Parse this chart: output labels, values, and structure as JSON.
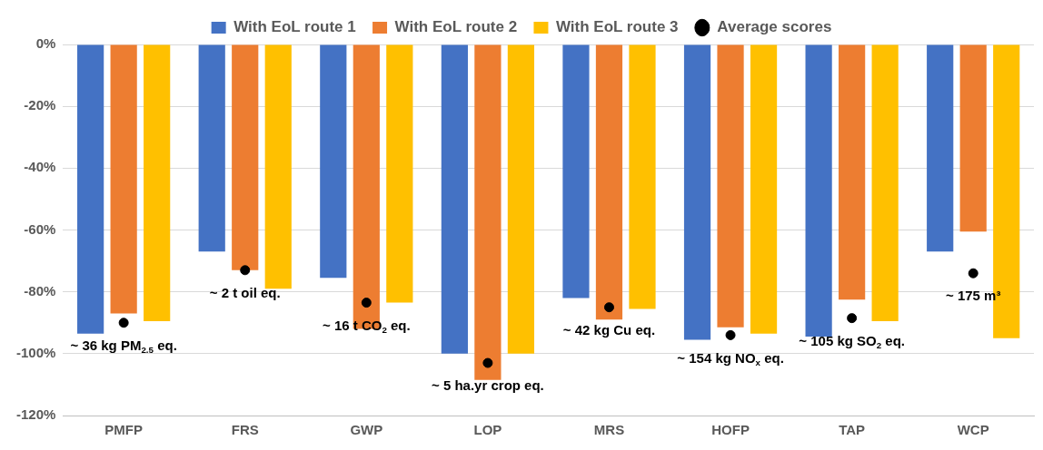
{
  "chart_data": {
    "type": "bar",
    "categories": [
      "PMFP",
      "FRS",
      "GWP",
      "LOP",
      "MRS",
      "HOFP",
      "TAP",
      "WCP"
    ],
    "series": [
      {
        "name": "With EoL route 1",
        "color": "#4472c4",
        "values": [
          -93.5,
          -67,
          -75.5,
          -100,
          -82,
          -95.5,
          -94.5,
          -67
        ]
      },
      {
        "name": "With EoL route 2",
        "color": "#ed7d31",
        "values": [
          -87,
          -73,
          -92,
          -108.5,
          -89,
          -91.5,
          -82.5,
          -60.5
        ]
      },
      {
        "name": "With EoL route 3",
        "color": "#ffc000",
        "values": [
          -89.5,
          -79,
          -83.5,
          -100,
          -85.5,
          -93.5,
          -89.5,
          -95
        ]
      },
      {
        "name": "Average scores",
        "type": "scatter",
        "marker": "circle",
        "color": "#000000",
        "x": [
          "PMFP",
          "FRS",
          "GWP",
          "LOP",
          "MRS",
          "HOFP",
          "TAP",
          "WCP"
        ],
        "values": [
          -90,
          -73,
          -83.5,
          -103,
          -85,
          -94,
          -88.5,
          -74
        ]
      }
    ],
    "ylim": [
      -120,
      0
    ],
    "yticks": [
      {
        "value": -120,
        "label": "-120%"
      },
      {
        "value": -100,
        "label": "-100%"
      },
      {
        "value": -80,
        "label": "-80%"
      },
      {
        "value": -60,
        "label": "-60%"
      },
      {
        "value": -40,
        "label": "-40%"
      },
      {
        "value": -20,
        "label": "-20%"
      },
      {
        "value": 0,
        "label": "0%"
      }
    ],
    "grid": "y",
    "legend": "top",
    "annotations": [
      {
        "text": "~ 36 kg PM$_{2.5}$ eq.",
        "x": "PMFP",
        "y": -90
      },
      {
        "text": "~ 2 t oil eq.",
        "x": "FRS",
        "y": -73
      },
      {
        "text": "~ 16 t CO$_{2}$ eq.",
        "x": "GWP",
        "y": -83.5
      },
      {
        "text": "~ 5 ha.yr crop eq.",
        "x": "LOP",
        "y": -103
      },
      {
        "text": "~ 42 kg Cu eq.",
        "x": "MRS",
        "y": -85
      },
      {
        "text": "~ 154 kg NO$_{x}$ eq.",
        "x": "HOFP",
        "y": -94
      },
      {
        "text": "~ 105 kg SO$_{2}$ eq.",
        "x": "TAP",
        "y": -88.5
      },
      {
        "text": "~ 175 m³",
        "x": "WCP",
        "y": -74
      }
    ]
  }
}
